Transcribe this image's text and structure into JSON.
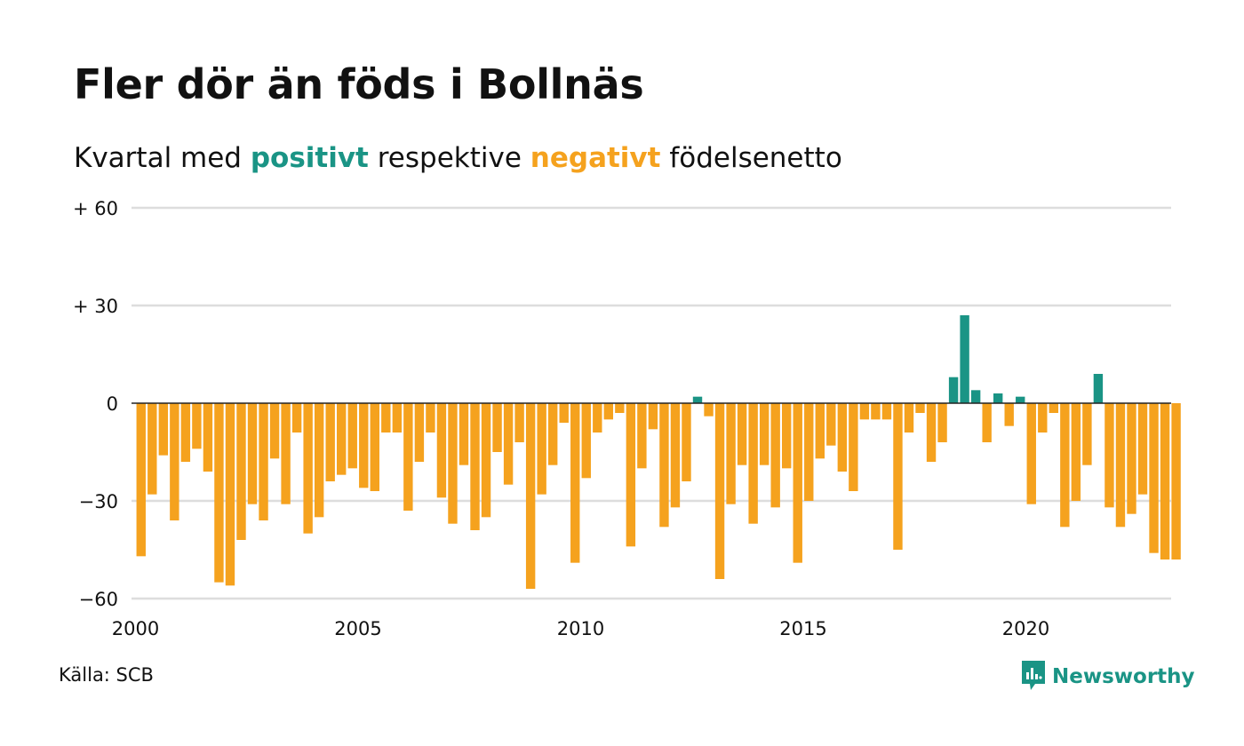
{
  "title": "Fler dör än föds i Bollnäs",
  "subtitle": {
    "part1": "Kvartal med ",
    "positive_word": "positivt",
    "part2": " respektive ",
    "negative_word": "negativt",
    "part3": " födelsenetto"
  },
  "source": "Källa: SCB",
  "brand": {
    "name": "Newsworthy",
    "icon": "newsworthy-logo-icon"
  },
  "colors": {
    "positive": "#1a9485",
    "negative": "#f5a21e",
    "grid": "#dddddd",
    "text": "#111111"
  },
  "chart_data": {
    "type": "bar",
    "title": "Fler dör än föds i Bollnäs",
    "subtitle": "Kvartal med positivt respektive negativt födelsenetto",
    "x_start": "2000 Q1",
    "x_end": "2023 Q2",
    "xlabel": "",
    "ylabel": "",
    "ylim": [
      -60,
      60
    ],
    "y_ticks": [
      60,
      30,
      0,
      -30,
      -60
    ],
    "y_tick_labels": [
      "+ 60",
      "+ 30",
      "0",
      "−30",
      "−60"
    ],
    "x_ticks": [
      2000,
      2005,
      2010,
      2015,
      2020
    ],
    "x_tick_labels": [
      "2000",
      "2005",
      "2010",
      "2015",
      "2020"
    ],
    "grid": true,
    "legend": "none",
    "categories": [
      "2000 Q1",
      "2000 Q2",
      "2000 Q3",
      "2000 Q4",
      "2001 Q1",
      "2001 Q2",
      "2001 Q3",
      "2001 Q4",
      "2002 Q1",
      "2002 Q2",
      "2002 Q3",
      "2002 Q4",
      "2003 Q1",
      "2003 Q2",
      "2003 Q3",
      "2003 Q4",
      "2004 Q1",
      "2004 Q2",
      "2004 Q3",
      "2004 Q4",
      "2005 Q1",
      "2005 Q2",
      "2005 Q3",
      "2005 Q4",
      "2006 Q1",
      "2006 Q2",
      "2006 Q3",
      "2006 Q4",
      "2007 Q1",
      "2007 Q2",
      "2007 Q3",
      "2007 Q4",
      "2008 Q1",
      "2008 Q2",
      "2008 Q3",
      "2008 Q4",
      "2009 Q1",
      "2009 Q2",
      "2009 Q3",
      "2009 Q4",
      "2010 Q1",
      "2010 Q2",
      "2010 Q3",
      "2010 Q4",
      "2011 Q1",
      "2011 Q2",
      "2011 Q3",
      "2011 Q4",
      "2012 Q1",
      "2012 Q2",
      "2012 Q3",
      "2012 Q4",
      "2013 Q1",
      "2013 Q2",
      "2013 Q3",
      "2013 Q4",
      "2014 Q1",
      "2014 Q2",
      "2014 Q3",
      "2014 Q4",
      "2015 Q1",
      "2015 Q2",
      "2015 Q3",
      "2015 Q4",
      "2016 Q1",
      "2016 Q2",
      "2016 Q3",
      "2016 Q4",
      "2017 Q1",
      "2017 Q2",
      "2017 Q3",
      "2017 Q4",
      "2018 Q1",
      "2018 Q2",
      "2018 Q3",
      "2018 Q4",
      "2019 Q1",
      "2019 Q2",
      "2019 Q3",
      "2019 Q4",
      "2020 Q1",
      "2020 Q2",
      "2020 Q3",
      "2020 Q4",
      "2021 Q1",
      "2021 Q2",
      "2021 Q3",
      "2021 Q4",
      "2022 Q1",
      "2022 Q2",
      "2022 Q3",
      "2022 Q4",
      "2023 Q1",
      "2023 Q2"
    ],
    "values": [
      -47,
      -28,
      -16,
      -36,
      -18,
      -14,
      -21,
      -55,
      -56,
      -42,
      -31,
      -36,
      -17,
      -31,
      -9,
      -40,
      -35,
      -24,
      -22,
      -20,
      -26,
      -27,
      -9,
      -9,
      -33,
      -18,
      -9,
      -29,
      -37,
      -19,
      -39,
      -35,
      -15,
      -25,
      -12,
      -57,
      -28,
      -19,
      -6,
      -49,
      -23,
      -9,
      -5,
      -3,
      -44,
      -20,
      -8,
      -38,
      -32,
      -24,
      2,
      -4,
      -54,
      -31,
      -19,
      -37,
      -19,
      -32,
      -20,
      -49,
      -30,
      -17,
      -13,
      -21,
      -27,
      -5,
      -5,
      -5,
      -45,
      -9,
      -3,
      -18,
      -12,
      8,
      27,
      4,
      -12,
      3,
      -7,
      2,
      -31,
      -9,
      -3,
      -38,
      -30,
      -19,
      9,
      -32,
      -38,
      -34,
      -28,
      -46,
      -48,
      -48
    ]
  }
}
